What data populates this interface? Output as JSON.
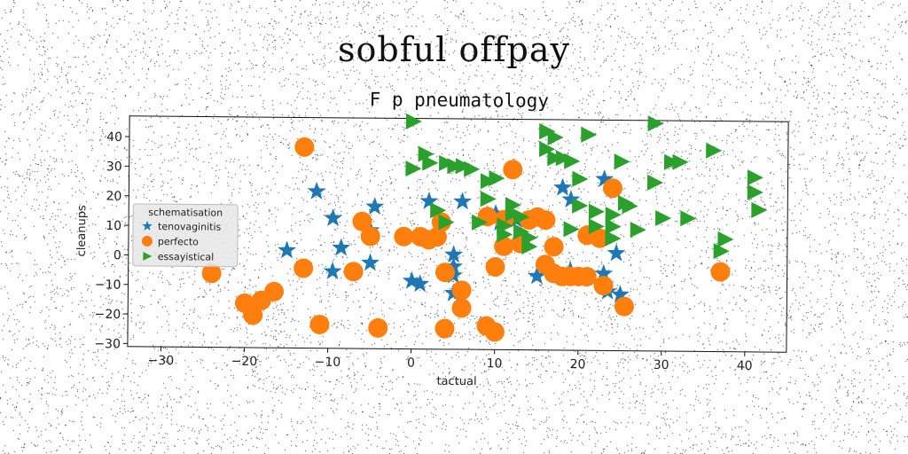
{
  "header": {
    "title": "sobful offpay"
  },
  "chart_data": {
    "type": "scatter",
    "title": "F p pneumatology",
    "xlabel": "tactual",
    "ylabel": "cleanups",
    "xlim": [
      -34,
      45
    ],
    "ylim": [
      -31,
      47
    ],
    "xticks": [
      -30,
      -20,
      -10,
      0,
      10,
      20,
      30,
      40
    ],
    "yticks": [
      -30,
      -20,
      -10,
      0,
      10,
      20,
      30,
      40
    ],
    "grid": false,
    "legend": {
      "title": "schematisation",
      "placement": "center-left"
    },
    "colors": {
      "tenovaginitis": "#1f77b4",
      "perfecto": "#ff7f0e",
      "essayistical": "#2ca02c"
    },
    "series": [
      {
        "name": "tenovaginitis",
        "marker": "star",
        "x": [
          -11.5,
          -9.5,
          -9.5,
          -8.5,
          -5,
          -5,
          -4.5,
          -15,
          0,
          1,
          2,
          5,
          5,
          5,
          5,
          6,
          10,
          10.5,
          11,
          12,
          12.5,
          15,
          18,
          19,
          19,
          23,
          23,
          23.5,
          24.5,
          25
        ],
        "y": [
          22,
          13,
          -5,
          3,
          -2,
          9,
          17,
          2,
          -8,
          -9,
          19,
          1,
          -3,
          -6,
          -12,
          19,
          15,
          12,
          13,
          14,
          13,
          -6,
          24,
          20,
          -4,
          27,
          -5,
          -11,
          2,
          -12
        ]
      },
      {
        "name": "perfecto",
        "marker": "circle",
        "x": [
          -24,
          -20,
          -19,
          -18,
          -16.5,
          -13,
          -13,
          -11,
          -7,
          -6,
          -5,
          -4,
          -1,
          1,
          2,
          3,
          3.5,
          4,
          4,
          6,
          6,
          9,
          9,
          10,
          10,
          11,
          11,
          12,
          13,
          14,
          15,
          16,
          16,
          17,
          17,
          18,
          19,
          20,
          21,
          21,
          22.5,
          23,
          24,
          25.5,
          37
        ],
        "y": [
          -6,
          -16,
          -20,
          -15,
          -12,
          37,
          -4,
          -23,
          -5,
          12,
          7,
          -24,
          7,
          7,
          6,
          7,
          12,
          -5,
          -24,
          -11,
          -17,
          14,
          -23,
          -25,
          -3,
          4,
          13,
          30,
          5,
          13,
          14,
          -2,
          13,
          4,
          -5,
          -6,
          -6,
          -6,
          -6,
          8,
          7,
          -9,
          24,
          -16,
          -4
        ]
      },
      {
        "name": "essayistical",
        "marker": "triangle-right",
        "x": [
          0,
          0,
          1.5,
          2,
          3,
          4,
          4,
          5,
          6,
          7,
          8,
          9,
          9,
          10,
          11,
          11,
          12,
          12,
          13,
          13,
          14,
          14,
          16,
          16,
          16,
          17,
          17,
          18,
          19,
          19,
          20,
          20,
          21,
          22,
          22,
          24,
          24,
          24,
          25,
          25.5,
          26,
          27,
          29,
          29,
          30,
          31,
          32,
          33,
          36,
          37,
          37.5,
          41,
          41,
          41.5
        ],
        "y": [
          46,
          30,
          35,
          32,
          16,
          32,
          12,
          31,
          31,
          30,
          12,
          20,
          26,
          27,
          11,
          8,
          18,
          15,
          9,
          14,
          4,
          7,
          37,
          43,
          43,
          34,
          41,
          34,
          33,
          10,
          27,
          18,
          42,
          11,
          16,
          7,
          11,
          15,
          33,
          19,
          18,
          10,
          46,
          26,
          14,
          33,
          33,
          14,
          37,
          3,
          7,
          28,
          23,
          17
        ]
      }
    ]
  }
}
